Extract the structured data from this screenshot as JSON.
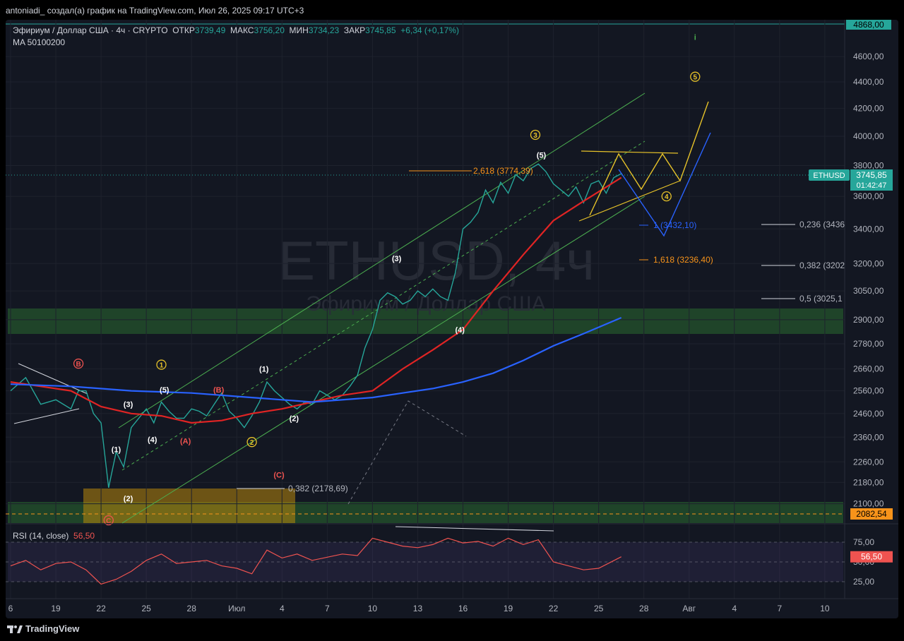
{
  "header": {
    "caption": "antoniadi_ создал(а) график на TradingView.com, Июл 26, 2025 09:17 UTC+3"
  },
  "legend": {
    "symbol": "Эфириум / Доллар США · 4ч · CRYPTO",
    "open_label": "ОТКР",
    "open_value": "3739,49",
    "high_label": "МАКС",
    "high_value": "3756,20",
    "low_label": "МИН",
    "low_value": "3734,23",
    "close_label": "ЗАКР",
    "close_value": "3745,85",
    "change": "+6,34 (+0,17%)",
    "ma_label": "MA 50100200"
  },
  "watermark": {
    "line1": "ETHUSD, 4ч",
    "line2": "Эфириум / Доллар США"
  },
  "price_axis": {
    "top_tag": "4868,00",
    "current_symbol": "ETHUSD",
    "current_price": "3745,85",
    "countdown": "01:42:47",
    "dashed_tag": "2082,54",
    "ticks": [
      {
        "label": "4600,00",
        "v": 4600
      },
      {
        "label": "4400,00",
        "v": 4400
      },
      {
        "label": "4200,00",
        "v": 4200
      },
      {
        "label": "4000,00",
        "v": 4000
      },
      {
        "label": "3800,00",
        "v": 3800
      },
      {
        "label": "3600,00",
        "v": 3600
      },
      {
        "label": "3400,00",
        "v": 3400
      },
      {
        "label": "3200,00",
        "v": 3200
      },
      {
        "label": "3050,00",
        "v": 3050
      },
      {
        "label": "2900,00",
        "v": 2900
      },
      {
        "label": "2780,00",
        "v": 2780
      },
      {
        "label": "2660,00",
        "v": 2660
      },
      {
        "label": "2560,00",
        "v": 2560
      },
      {
        "label": "2460,00",
        "v": 2460
      },
      {
        "label": "2360,00",
        "v": 2360
      },
      {
        "label": "2260,00",
        "v": 2260
      },
      {
        "label": "2180,00",
        "v": 2180
      },
      {
        "label": "2100,00",
        "v": 2100
      }
    ]
  },
  "time_axis": {
    "ticks": [
      {
        "label": "6",
        "t": 0
      },
      {
        "label": "19",
        "t": 3
      },
      {
        "label": "22",
        "t": 6
      },
      {
        "label": "25",
        "t": 9
      },
      {
        "label": "28",
        "t": 12
      },
      {
        "label": "Июл",
        "t": 15
      },
      {
        "label": "4",
        "t": 18
      },
      {
        "label": "7",
        "t": 21
      },
      {
        "label": "10",
        "t": 24
      },
      {
        "label": "13",
        "t": 27
      },
      {
        "label": "16",
        "t": 30
      },
      {
        "label": "19",
        "t": 33
      },
      {
        "label": "22",
        "t": 36
      },
      {
        "label": "25",
        "t": 39
      },
      {
        "label": "28",
        "t": 42
      },
      {
        "label": "Авг",
        "t": 45
      },
      {
        "label": "4",
        "t": 48
      },
      {
        "label": "7",
        "t": 51
      },
      {
        "label": "10",
        "t": 54
      }
    ]
  },
  "rsi": {
    "label": "RSI (14, close)",
    "value": "56,50",
    "ticks": [
      {
        "label": "75,00",
        "v": 75
      },
      {
        "label": "50,00",
        "v": 50
      },
      {
        "label": "25,00",
        "v": 25
      }
    ]
  },
  "annotations": {
    "fib_2618": "2,618 (3774,39)",
    "fib_1": "1 (3432,10)",
    "fib_1618": "1,618 (3236,40)",
    "fib_0236": "0,236 (3436",
    "fib_0382_r": "0,382 (3202",
    "fib_05": "0,5 (3025,1",
    "fib_0382_l": "0,382 (2178,69)",
    "waves": [
      {
        "text": "B",
        "t": 4.5,
        "p": 2685,
        "style": "red-circle"
      },
      {
        "text": "C",
        "t": 6.5,
        "p": 2040,
        "style": "red-circle"
      },
      {
        "text": "1",
        "t": 10,
        "p": 2680,
        "style": "yellow-circle"
      },
      {
        "text": "2",
        "t": 16,
        "p": 2340,
        "style": "yellow-circle"
      },
      {
        "text": "3",
        "t": 34.8,
        "p": 4010,
        "style": "yellow-circle"
      },
      {
        "text": "4",
        "t": 43.5,
        "p": 3600,
        "style": "yellow-circle"
      },
      {
        "text": "5",
        "t": 45.4,
        "p": 4440,
        "style": "yellow-circle"
      },
      {
        "text": "i",
        "t": 45.4,
        "p": 4760,
        "style": "green"
      },
      {
        "text": "(1)",
        "t": 7,
        "p": 2310,
        "style": "white"
      },
      {
        "text": "(2)",
        "t": 7.8,
        "p": 2120,
        "style": "white"
      },
      {
        "text": "(3)",
        "t": 7.8,
        "p": 2500,
        "style": "white"
      },
      {
        "text": "(4)",
        "t": 9.4,
        "p": 2350,
        "style": "white"
      },
      {
        "text": "(5)",
        "t": 10.2,
        "p": 2565,
        "style": "white"
      },
      {
        "text": "(A)",
        "t": 11.6,
        "p": 2345,
        "style": "red"
      },
      {
        "text": "(B)",
        "t": 13.8,
        "p": 2565,
        "style": "red"
      },
      {
        "text": "(C)",
        "t": 17.8,
        "p": 2210,
        "style": "red"
      },
      {
        "text": "(1)",
        "t": 16.8,
        "p": 2660,
        "style": "white"
      },
      {
        "text": "(2)",
        "t": 18.8,
        "p": 2440,
        "style": "white"
      },
      {
        "text": "(3)",
        "t": 25.6,
        "p": 3230,
        "style": "white"
      },
      {
        "text": "(4)",
        "t": 29.8,
        "p": 2850,
        "style": "white"
      },
      {
        "text": "(5)",
        "t": 35.2,
        "p": 3870,
        "style": "white"
      }
    ]
  },
  "chart_data": {
    "type": "line",
    "title": "Эфириум / Доллар США · 4ч · CRYPTO",
    "xlabel": "",
    "ylabel": "",
    "x_unit": "days from Jun 16, 2025",
    "ylim": [
      2030,
      4870
    ],
    "price_scale": "log",
    "series": [
      {
        "name": "ETHUSD",
        "color": "#26a69a",
        "x": [
          0,
          1,
          2,
          3,
          4,
          4.5,
          5,
          5.5,
          6,
          6.5,
          7,
          7.5,
          8,
          8.5,
          9,
          9.5,
          10,
          10.5,
          11,
          11.5,
          12,
          12.5,
          13,
          13.5,
          14,
          14.5,
          15,
          15.5,
          16,
          16.5,
          17,
          17.5,
          18,
          18.5,
          19,
          19.5,
          20,
          20.5,
          21,
          21.5,
          22,
          22.5,
          23,
          23.5,
          24,
          24.5,
          25,
          25.5,
          26,
          26.5,
          27,
          27.5,
          28,
          28.5,
          29,
          29.5,
          30,
          30.5,
          31,
          31.5,
          32,
          32.5,
          33,
          33.5,
          34,
          34.5,
          35,
          35.5,
          36,
          36.5,
          37,
          37.5,
          38,
          38.5,
          39,
          39.5,
          40,
          40.5
        ],
        "y": [
          2560,
          2620,
          2500,
          2520,
          2480,
          2560,
          2560,
          2460,
          2420,
          2160,
          2300,
          2240,
          2400,
          2440,
          2480,
          2420,
          2510,
          2470,
          2440,
          2440,
          2480,
          2470,
          2450,
          2500,
          2550,
          2470,
          2440,
          2400,
          2450,
          2510,
          2600,
          2560,
          2530,
          2500,
          2480,
          2510,
          2500,
          2560,
          2540,
          2520,
          2540,
          2580,
          2630,
          2760,
          2850,
          3000,
          3040,
          3020,
          2980,
          3000,
          3050,
          3020,
          3060,
          3020,
          3000,
          3150,
          3400,
          3440,
          3500,
          3640,
          3560,
          3690,
          3620,
          3740,
          3700,
          3780,
          3810,
          3760,
          3680,
          3640,
          3600,
          3660,
          3560,
          3680,
          3700,
          3620,
          3720,
          3746
        ]
      },
      {
        "name": "MA 50",
        "color": "#e02424",
        "x": [
          0,
          2,
          4,
          6,
          8,
          10,
          12,
          14,
          16,
          18,
          20,
          22,
          24,
          26,
          28,
          30,
          32,
          34,
          36,
          38,
          40.5
        ],
        "y": [
          2600,
          2580,
          2560,
          2490,
          2460,
          2450,
          2420,
          2430,
          2460,
          2480,
          2510,
          2540,
          2560,
          2660,
          2750,
          2850,
          3050,
          3250,
          3450,
          3570,
          3720
        ]
      },
      {
        "name": "MA 100",
        "color": "#2962ff",
        "x": [
          0,
          4,
          8,
          12,
          16,
          20,
          24,
          26,
          28,
          30,
          32,
          34,
          36,
          38,
          40.5
        ],
        "y": [
          2590,
          2580,
          2560,
          2550,
          2530,
          2510,
          2530,
          2550,
          2570,
          2600,
          2640,
          2700,
          2770,
          2830,
          2910
        ]
      }
    ],
    "rsi": {
      "name": "RSI (14, close)",
      "x": [
        0,
        1,
        2,
        3,
        4,
        5,
        6,
        7,
        8,
        9,
        10,
        11,
        12,
        13,
        14,
        15,
        16,
        17,
        18,
        19,
        20,
        21,
        22,
        23,
        24,
        25,
        26,
        27,
        28,
        29,
        30,
        31,
        32,
        33,
        34,
        35,
        36,
        37,
        38,
        39,
        40.5
      ],
      "y": [
        45,
        52,
        40,
        48,
        50,
        40,
        22,
        28,
        38,
        52,
        60,
        48,
        50,
        52,
        45,
        42,
        35,
        65,
        55,
        60,
        52,
        56,
        60,
        58,
        80,
        75,
        70,
        68,
        72,
        80,
        74,
        76,
        70,
        80,
        72,
        78,
        50,
        45,
        40,
        42,
        56.5
      ]
    }
  }
}
